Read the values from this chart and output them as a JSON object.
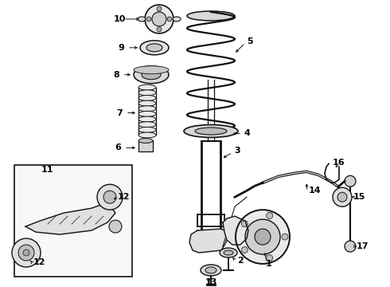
{
  "bg_color": "#ffffff",
  "line_color": "#111111",
  "label_color": "#000000",
  "font_size": 8.0
}
